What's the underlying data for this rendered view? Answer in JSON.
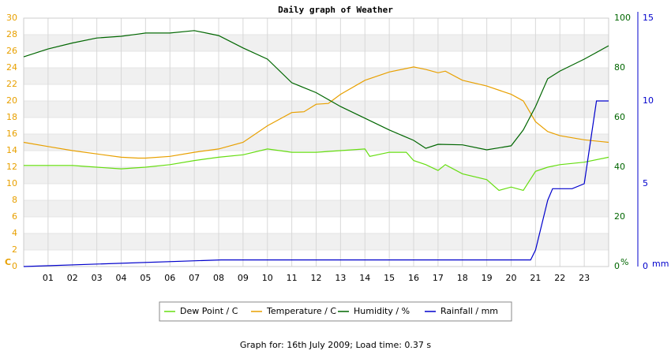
{
  "chart_data": {
    "type": "line",
    "title": "Daily graph of Weather",
    "footer": "Graph for: 16th July 2009; Load time: 0.37 s",
    "y_label": "C",
    "y2_label": "%",
    "y3_label": "mm",
    "xlim": [
      0,
      24
    ],
    "xticks": [
      {
        "value": 1,
        "label": "01"
      },
      {
        "value": 2,
        "label": "02"
      },
      {
        "value": 3,
        "label": "03"
      },
      {
        "value": 4,
        "label": "04"
      },
      {
        "value": 5,
        "label": "05"
      },
      {
        "value": 6,
        "label": "06"
      },
      {
        "value": 7,
        "label": "07"
      },
      {
        "value": 8,
        "label": "08"
      },
      {
        "value": 9,
        "label": "09"
      },
      {
        "value": 10,
        "label": "10"
      },
      {
        "value": 11,
        "label": "11"
      },
      {
        "value": 12,
        "label": "12"
      },
      {
        "value": 13,
        "label": "13"
      },
      {
        "value": 14,
        "label": "14"
      },
      {
        "value": 15,
        "label": "15"
      },
      {
        "value": 16,
        "label": "16"
      },
      {
        "value": 17,
        "label": "17"
      },
      {
        "value": 18,
        "label": "18"
      },
      {
        "value": 19,
        "label": "19"
      },
      {
        "value": 20,
        "label": "20"
      },
      {
        "value": 21,
        "label": "21"
      },
      {
        "value": 22,
        "label": "22"
      },
      {
        "value": 23,
        "label": "23"
      }
    ],
    "ylim": [
      0,
      30
    ],
    "yticks": [
      0,
      2,
      4,
      6,
      8,
      10,
      12,
      14,
      16,
      18,
      20,
      22,
      24,
      26,
      28,
      30
    ],
    "y2lim": [
      0,
      100
    ],
    "y2ticks": [
      0,
      20,
      40,
      60,
      80,
      100
    ],
    "y3lim": [
      0,
      15
    ],
    "y3ticks": [
      0,
      5,
      10,
      15
    ],
    "grid": true,
    "series": [
      {
        "name": "Dew Point / C",
        "color": "#66dd11",
        "axis": "y",
        "x": [
          0,
          2,
          4,
          5,
          6,
          7,
          8,
          9,
          10,
          11,
          12,
          13,
          14,
          14.2,
          15,
          15.7,
          16,
          16.5,
          17,
          17.3,
          18,
          19,
          19.5,
          20,
          20.5,
          21,
          21.5,
          22,
          23,
          24
        ],
        "values": [
          12.2,
          12.2,
          11.8,
          12.0,
          12.3,
          12.8,
          13.2,
          13.5,
          14.2,
          13.8,
          13.8,
          14.0,
          14.2,
          13.3,
          13.8,
          13.8,
          12.8,
          12.3,
          11.6,
          12.3,
          11.2,
          10.5,
          9.2,
          9.6,
          9.2,
          11.5,
          12.0,
          12.3,
          12.6,
          13.2
        ]
      },
      {
        "name": "Temperature / C",
        "color": "#e8a000",
        "axis": "y",
        "x": [
          0,
          1,
          2,
          3,
          4,
          4.7,
          5,
          6,
          7,
          8,
          9,
          10,
          11,
          11.5,
          12,
          12.5,
          13,
          14,
          15,
          16,
          16.5,
          17,
          17.3,
          18,
          19,
          20,
          20.5,
          21,
          21.5,
          22,
          23,
          24
        ],
        "values": [
          15.0,
          14.5,
          14.0,
          13.6,
          13.2,
          13.1,
          13.1,
          13.3,
          13.8,
          14.2,
          15.0,
          17.0,
          18.6,
          18.7,
          19.6,
          19.7,
          20.8,
          22.5,
          23.5,
          24.1,
          23.8,
          23.4,
          23.6,
          22.5,
          21.8,
          20.8,
          20.0,
          17.5,
          16.3,
          15.8,
          15.3,
          15.0
        ]
      },
      {
        "name": "Humidity / %",
        "color": "#006600",
        "axis": "y2",
        "x": [
          0,
          1,
          2,
          3,
          4,
          4.7,
          5,
          6,
          7,
          8,
          9,
          10,
          11,
          12,
          13,
          14,
          15,
          16,
          16.5,
          17,
          18,
          19,
          20,
          20.5,
          21,
          21.5,
          22,
          23,
          24
        ],
        "values": [
          84.4,
          87.6,
          90,
          92,
          92.7,
          93.6,
          94,
          94,
          95,
          93,
          88,
          83.5,
          74,
          70,
          64.4,
          59.7,
          55,
          50.8,
          47.6,
          49.2,
          49,
          47,
          48.6,
          55,
          64.4,
          75.6,
          78.7,
          83.5,
          88.9
        ]
      },
      {
        "name": "Rainfall / mm",
        "color": "#0000cc",
        "axis": "y3",
        "x": [
          0,
          8.1,
          20.8,
          21,
          21.5,
          21.7,
          22.5,
          23,
          23.2,
          23.5,
          24
        ],
        "values": [
          0,
          0.4,
          0.4,
          1.0,
          4.0,
          4.7,
          4.7,
          5.0,
          7.0,
          10.0,
          10.0
        ]
      }
    ]
  }
}
